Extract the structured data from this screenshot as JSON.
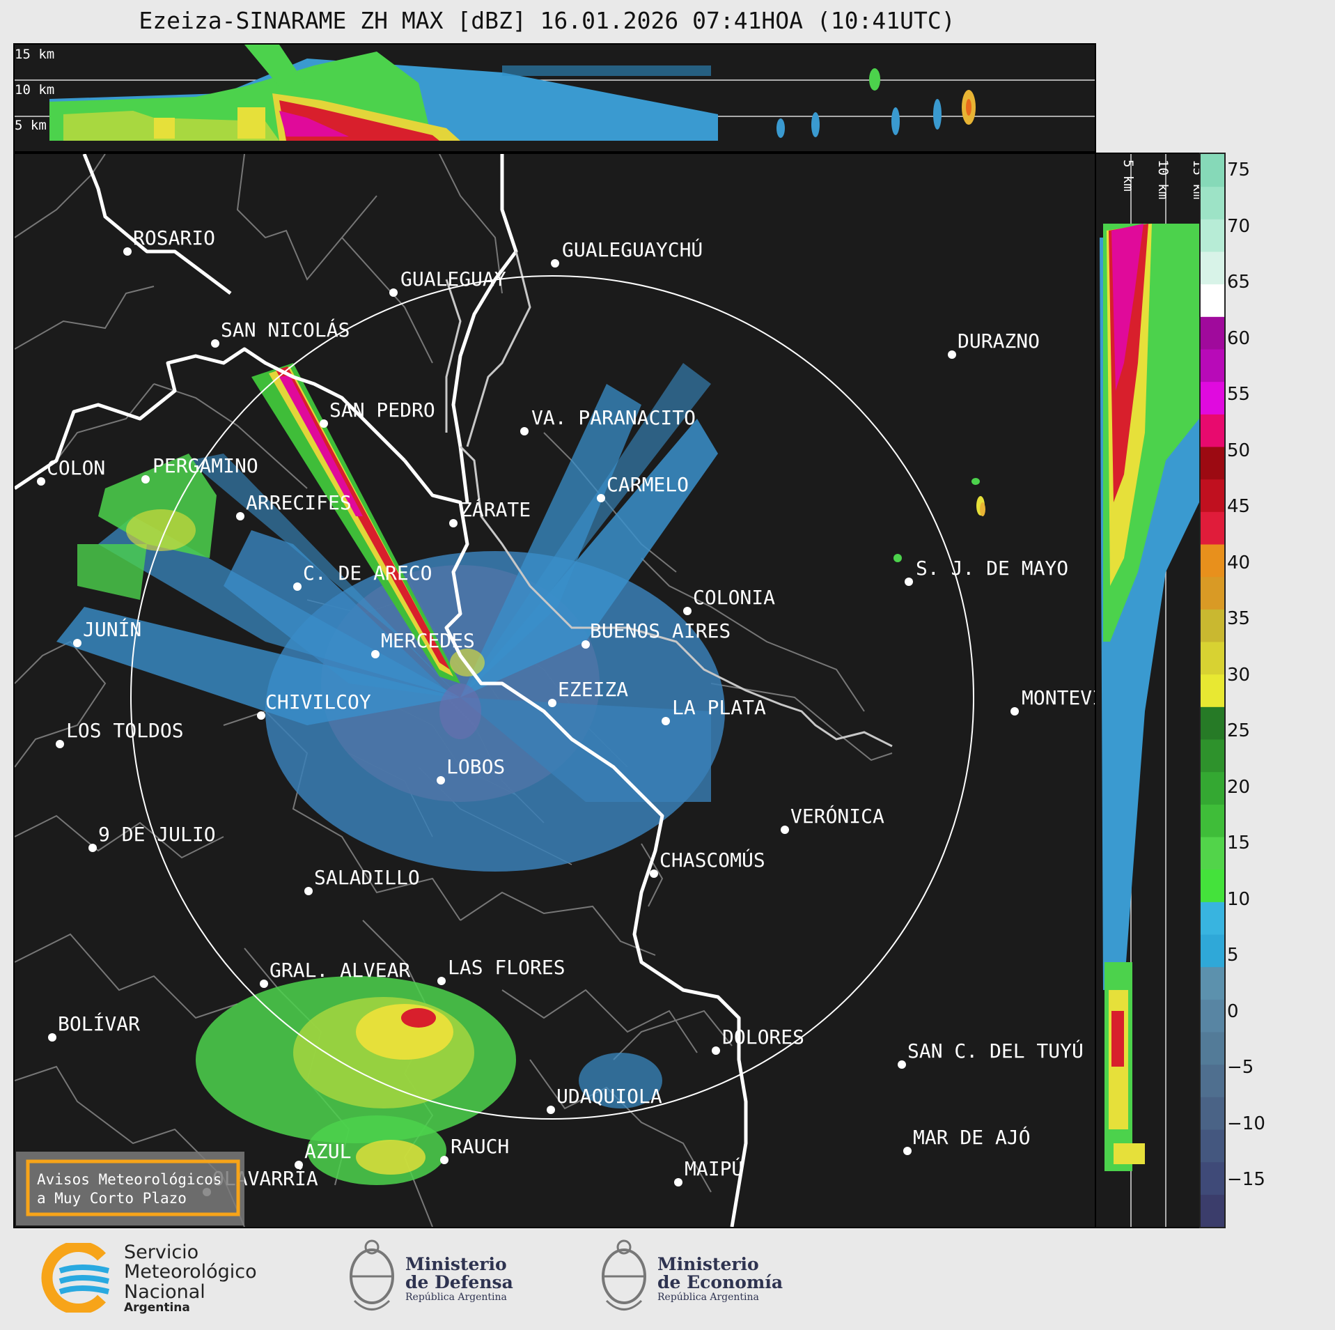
{
  "title": "Ezeiza-SINARAME ZH MAX [dBZ] 16.01.2026 07:41HOA (10:41UTC)",
  "top_panel": {
    "height_labels": [
      "15 km",
      "10 km",
      "5 km"
    ]
  },
  "side_panel": {
    "height_labels": [
      "5 km",
      "10 km",
      "15 km"
    ]
  },
  "colorbar": {
    "ticks": [
      "75",
      "70",
      "65",
      "60",
      "55",
      "50",
      "45",
      "40",
      "35",
      "30",
      "25",
      "20",
      "15",
      "10",
      "5",
      "0",
      "−5",
      "−10",
      "−15"
    ],
    "colors": [
      "#3b3d6b",
      "#3f4a78",
      "#44577f",
      "#4a6386",
      "#4f6f8f",
      "#537b98",
      "#5885a3",
      "#5c91ad",
      "#2fa8d8",
      "#38b4e0",
      "#44e23b",
      "#52d44a",
      "#3fbd39",
      "#34a832",
      "#2e922c",
      "#267a26",
      "#e8e832",
      "#d8d232",
      "#c9b830",
      "#d99a25",
      "#e8901c",
      "#e01c3a",
      "#c0101f",
      "#9c0a12",
      "#e80a6e",
      "#e00adf",
      "#b80ab8",
      "#a00a9c",
      "#ffffff",
      "#d8f3e8",
      "#b7ecd6",
      "#9de3c6",
      "#86d9b8"
    ]
  },
  "cities": [
    {
      "name": "ROSARIO"
    },
    {
      "name": "GUALEGUAYCHÚ"
    },
    {
      "name": "GUALEGUAY"
    },
    {
      "name": "SAN NICOLÁS"
    },
    {
      "name": "DURAZNO"
    },
    {
      "name": "SAN PEDRO"
    },
    {
      "name": "VA. PARANACITO"
    },
    {
      "name": "COLON"
    },
    {
      "name": "PERGAMINO"
    },
    {
      "name": "CARMELO"
    },
    {
      "name": "ARRECIFES"
    },
    {
      "name": "ZÁRATE"
    },
    {
      "name": "C. DE ARECO"
    },
    {
      "name": "S. J. DE MAYO"
    },
    {
      "name": "COLONIA"
    },
    {
      "name": "JUNÍN"
    },
    {
      "name": "BUENOS AIRES"
    },
    {
      "name": "MERCEDES"
    },
    {
      "name": "EZEIZA"
    },
    {
      "name": "MONTEVIDEO"
    },
    {
      "name": "CHIVILCOY"
    },
    {
      "name": "LA PLATA"
    },
    {
      "name": "LOS TOLDOS"
    },
    {
      "name": "LOBOS"
    },
    {
      "name": "VERÓNICA"
    },
    {
      "name": "9 DE JULIO"
    },
    {
      "name": "CHASCOMÚS"
    },
    {
      "name": "SALADILLO"
    },
    {
      "name": "GRAL. ALVEAR"
    },
    {
      "name": "LAS FLORES"
    },
    {
      "name": "BOLÍVAR"
    },
    {
      "name": "DOLORES"
    },
    {
      "name": "SAN C. DEL TUYÚ"
    },
    {
      "name": "UDAQUIOLA"
    },
    {
      "name": "MAR DE AJÓ"
    },
    {
      "name": "RAUCH"
    },
    {
      "name": "AZUL"
    },
    {
      "name": "OLAVARRÍA"
    },
    {
      "name": "MAIPÚ"
    }
  ],
  "notice_box": {
    "line1": "Avisos Meteorológicos",
    "line2": "a Muy Corto Plazo"
  },
  "footer": {
    "smn": {
      "line1": "Servicio",
      "line2": "Meteorológico",
      "line3": "Nacional",
      "line4": "Argentina"
    },
    "defensa": {
      "line1": "Ministerio",
      "line2": "de Defensa",
      "line3": "República Argentina"
    },
    "economia": {
      "line1": "Ministerio",
      "line2": "de Economía",
      "line3": "República Argentina"
    }
  }
}
